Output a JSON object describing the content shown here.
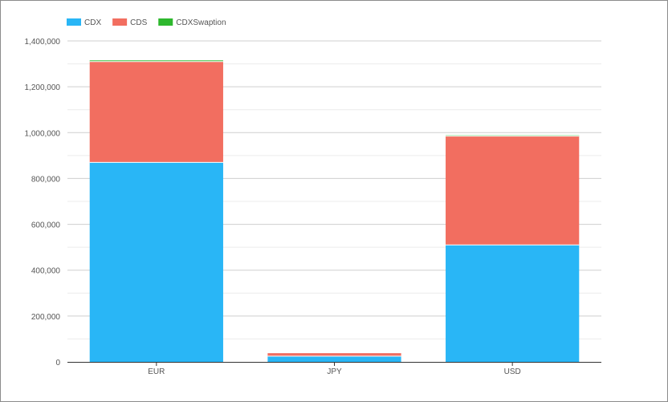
{
  "chart_data": {
    "type": "bar",
    "stacked": true,
    "categories": [
      "EUR",
      "JPY",
      "USD"
    ],
    "series": [
      {
        "name": "CDX",
        "color": "#29b6f6",
        "values": [
          870000,
          25000,
          510000
        ]
      },
      {
        "name": "CDS",
        "color": "#f26e60",
        "values": [
          440000,
          13000,
          475000
        ]
      },
      {
        "name": "CDXSwaption",
        "color": "#2eb82e",
        "values": [
          5000,
          0,
          3000
        ]
      }
    ],
    "yticks": [
      "0",
      "200,000",
      "400,000",
      "600,000",
      "800,000",
      "1,000,000",
      "1,200,000",
      "1,400,000"
    ],
    "ylim": [
      0,
      1400000
    ],
    "grid": true,
    "legend": "top-left"
  }
}
